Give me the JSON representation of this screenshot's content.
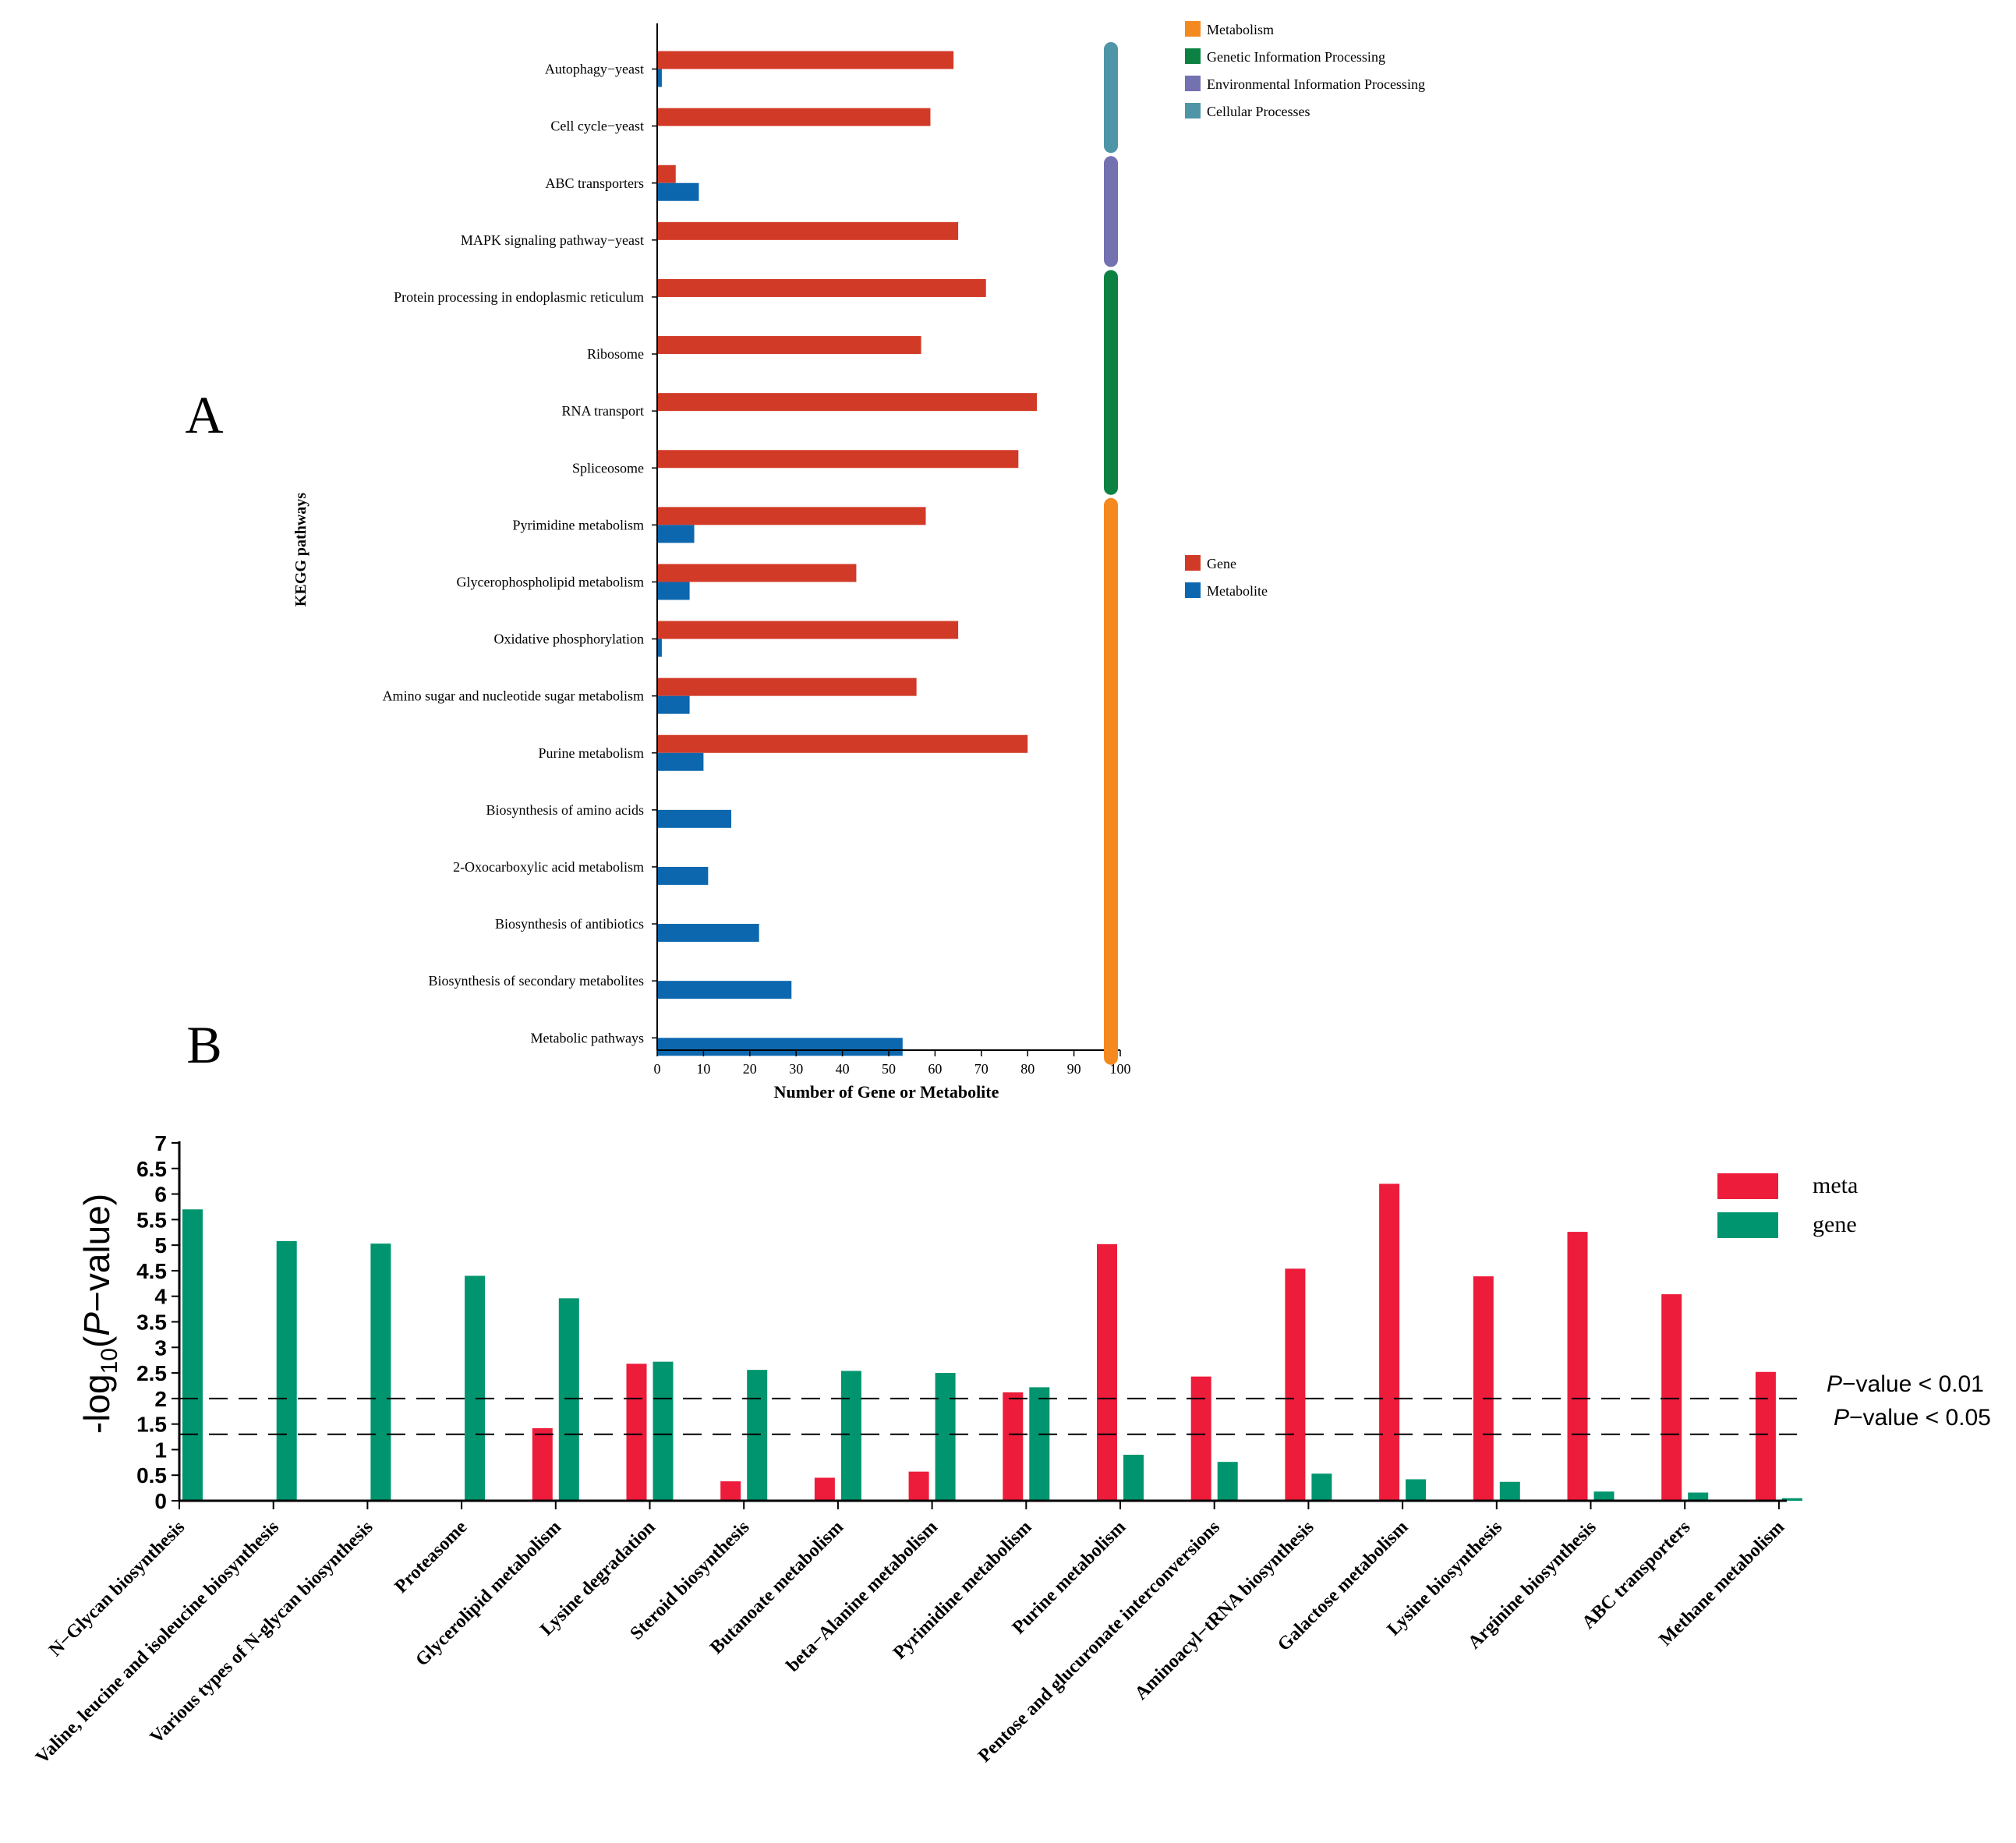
{
  "chart_data": [
    {
      "type": "bar",
      "orientation": "horizontal",
      "panel_label": "A",
      "title": "",
      "xlabel": "Number of Gene or Metabolite",
      "ylabel": "KEGG pathways",
      "xlim": [
        0,
        100
      ],
      "xticks": [
        0,
        10,
        20,
        30,
        40,
        50,
        60,
        70,
        80,
        90,
        100
      ],
      "categories": [
        "Autophagy−yeast",
        "Cell cycle−yeast",
        "ABC transporters",
        "MAPK signaling pathway−yeast",
        "Protein processing in endoplasmic reticulum",
        "Ribosome",
        "RNA transport",
        "Spliceosome",
        "Pyrimidine metabolism",
        "Glycerophospholipid metabolism",
        "Oxidative phosphorylation",
        "Amino sugar and nucleotide sugar metabolism",
        "Purine metabolism",
        "Biosynthesis of amino acids",
        "2-Oxocarboxylic acid metabolism",
        "Biosynthesis of antibiotics",
        "Biosynthesis of secondary metabolites",
        "Metabolic pathways"
      ],
      "series": [
        {
          "name": "Gene",
          "color": "#d23a28",
          "values": [
            64,
            59,
            4,
            65,
            71,
            57,
            82,
            78,
            58,
            43,
            65,
            56,
            80,
            0,
            0,
            0,
            0,
            0
          ]
        },
        {
          "name": "Metabolite",
          "color": "#0c67ae",
          "values": [
            1,
            0,
            9,
            0,
            0,
            0,
            0,
            0,
            8,
            7,
            1,
            7,
            10,
            16,
            11,
            22,
            29,
            53
          ]
        }
      ],
      "category_groups": [
        {
          "name": "Metabolism",
          "color": "#f4891f",
          "from": 8,
          "to": 17
        },
        {
          "name": "Genetic Information Processing",
          "color": "#0c8242",
          "from": 4,
          "to": 7
        },
        {
          "name": "Environmental Information Processing",
          "color": "#7371b0",
          "from": 2,
          "to": 3
        },
        {
          "name": "Cellular Processes",
          "color": "#4e96a7",
          "from": 0,
          "to": 1
        }
      ],
      "group_legend_position": "top-right",
      "series_legend_position": "right"
    },
    {
      "type": "bar",
      "orientation": "vertical",
      "panel_label": "B",
      "title": "",
      "xlabel": "",
      "ylabel_prefix": "-log",
      "ylabel_subscript": "10",
      "ylabel_italic": "P",
      "ylabel_suffix": "−value)",
      "ylim": [
        0,
        7
      ],
      "yticks": [
        "0",
        "0.5",
        "1",
        "1.5",
        "2",
        "2.5",
        "3",
        "3.5",
        "4",
        "4.5",
        "5",
        "5.5",
        "6",
        "6.5",
        "7"
      ],
      "categories": [
        "N−Glycan biosynthesis",
        "Valine, leucine and isoleucine biosynthesis",
        "Various types of N-glycan biosynthesis",
        "Proteasome",
        "Glycerolipid metabolism",
        "Lysine degradation",
        "Steroid biosynthesis",
        "Butanoate metabolism",
        "beta−Alanine metabolism",
        "Pyrimidine metabolism",
        "Purine metabolism",
        "Pentose and glucuronate interconversions",
        "Aminoacyl−tRNA biosynthesis",
        "Galactose metabolism",
        "Lysine biosynthesis",
        "Arginine biosynthesis",
        "ABC transporters",
        "Methane metabolism"
      ],
      "series": [
        {
          "name": "meta",
          "color": "#ed1c3a",
          "values": [
            0,
            0,
            0,
            0,
            1.42,
            2.68,
            0.38,
            0.45,
            0.57,
            2.12,
            5.02,
            2.43,
            4.54,
            6.2,
            4.39,
            5.26,
            4.04,
            2.52
          ]
        },
        {
          "name": "gene",
          "color": "#00956e",
          "values": [
            5.7,
            5.08,
            5.03,
            4.4,
            3.96,
            2.72,
            2.56,
            2.54,
            2.5,
            2.22,
            0.9,
            0.76,
            0.53,
            0.42,
            0.37,
            0.18,
            0.16,
            0.05
          ]
        }
      ],
      "reference_lines": [
        {
          "y": 2.0,
          "label_italic": "P",
          "label_rest": "−value < 0.01",
          "style": "dashed"
        },
        {
          "y": 1.3,
          "label_italic": "P",
          "label_rest": "−value < 0.05",
          "style": "dashed"
        }
      ],
      "legend_position": "top-right"
    }
  ]
}
